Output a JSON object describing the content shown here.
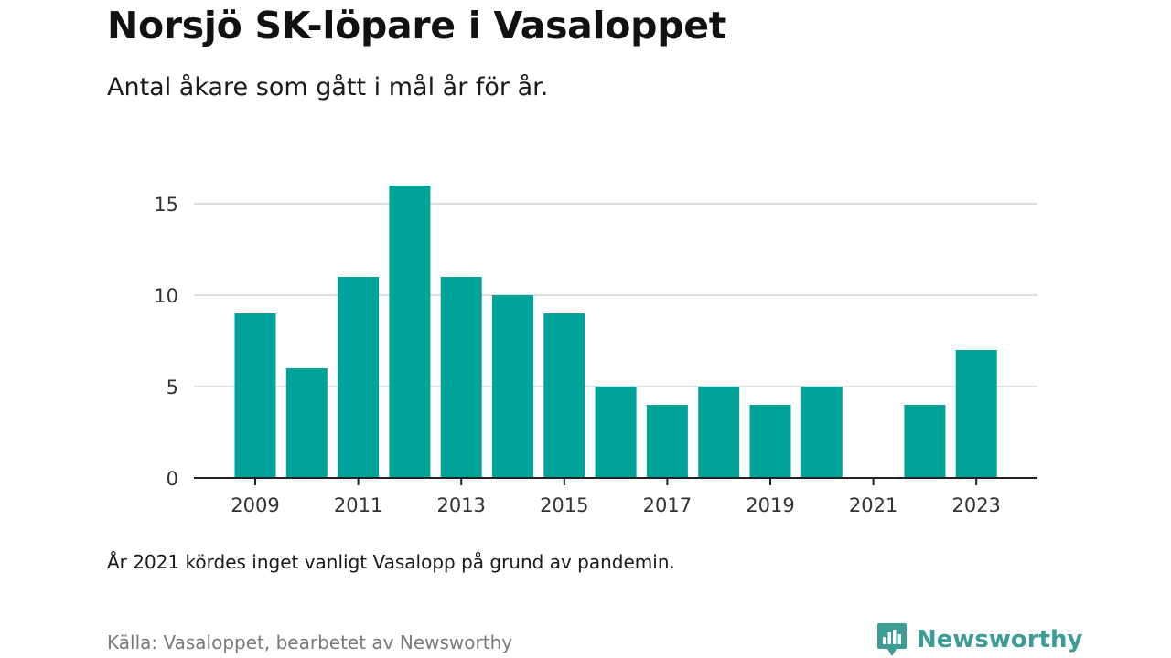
{
  "title": "Norsjö SK-löpare i Vasaloppet",
  "subtitle": "Antal åkare som gått i mål år för år.",
  "note": "År 2021 kördes inget vanligt Vasalopp på grund av pandemin.",
  "source": "Källa: Vasaloppet, bearbetet av Newsworthy",
  "brand": {
    "name": "Newsworthy",
    "icon": "newsworthy-logo-icon",
    "color": "#3d9d96"
  },
  "chart_data": {
    "type": "bar",
    "categories": [
      "2009",
      "2010",
      "2011",
      "2012",
      "2013",
      "2014",
      "2015",
      "2016",
      "2017",
      "2018",
      "2019",
      "2020",
      "2021",
      "2022",
      "2023"
    ],
    "values": [
      9,
      6,
      11,
      16,
      11,
      10,
      9,
      5,
      4,
      5,
      4,
      5,
      0,
      4,
      7
    ],
    "x_tick_labels": [
      "2009",
      "2011",
      "2013",
      "2015",
      "2017",
      "2019",
      "2021",
      "2023"
    ],
    "y_ticks": [
      0,
      5,
      10,
      15
    ],
    "ylim": [
      0,
      16
    ],
    "xlabel": "",
    "ylabel": "",
    "bar_color": "#00a399",
    "grid": true,
    "legend": false
  }
}
